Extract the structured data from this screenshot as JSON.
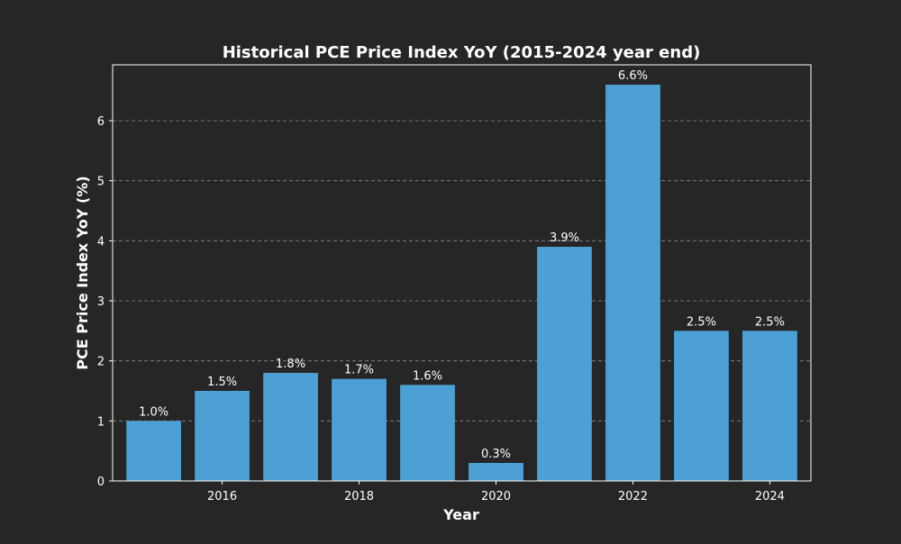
{
  "chart_data": {
    "type": "bar",
    "title": "Historical PCE Price Index YoY (2015-2024 year end)",
    "xlabel": "Year",
    "ylabel": "PCE Price Index YoY (%)",
    "x": [
      2015,
      2016,
      2017,
      2018,
      2019,
      2020,
      2021,
      2022,
      2023,
      2024
    ],
    "values": [
      1.0,
      1.5,
      1.8,
      1.7,
      1.6,
      0.3,
      3.9,
      6.6,
      2.5,
      2.5
    ],
    "data_labels": [
      "1.0%",
      "1.5%",
      "1.8%",
      "1.7%",
      "1.6%",
      "0.3%",
      "3.9%",
      "6.6%",
      "2.5%",
      "2.5%"
    ],
    "xticks": [
      2016,
      2018,
      2020,
      2022,
      2024
    ],
    "yticks": [
      0,
      1,
      2,
      3,
      4,
      5,
      6
    ],
    "xlim": [
      2014.4,
      2024.6
    ],
    "ylim": [
      0,
      6.93
    ],
    "grid": "y-dashed",
    "legend": "none",
    "colors": {
      "background": "#262626",
      "bar": "#4ca0d4",
      "text": "#ffffff",
      "axis": "#ffffff",
      "grid": "#8a8a8a"
    }
  }
}
